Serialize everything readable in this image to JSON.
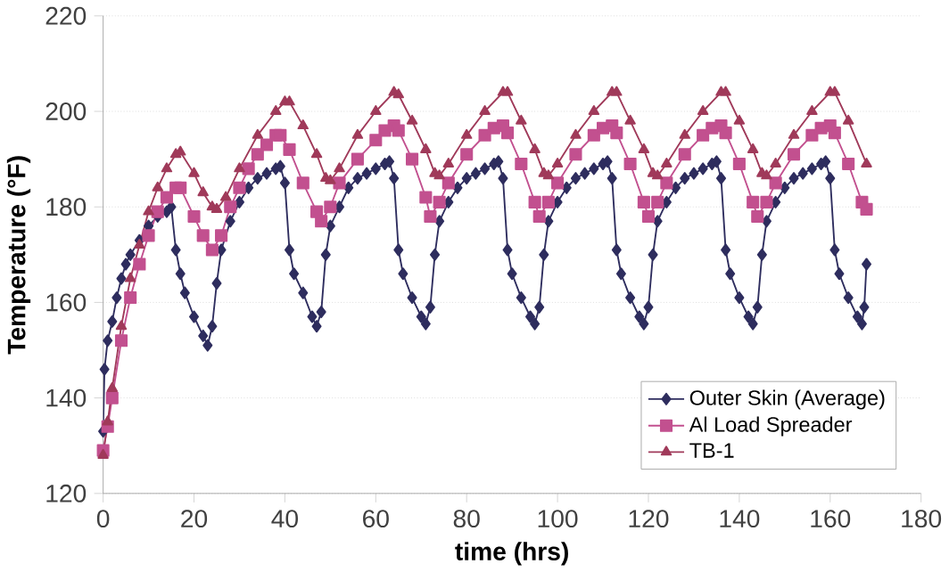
{
  "chart_data": {
    "type": "line",
    "xlabel": "time (hrs)",
    "ylabel": "Temperature (°F)",
    "xlim": [
      0,
      180
    ],
    "ylim": [
      120,
      220
    ],
    "xticks": [
      0,
      20,
      40,
      60,
      80,
      100,
      120,
      140,
      160,
      180
    ],
    "yticks": [
      120,
      140,
      160,
      180,
      200,
      220
    ],
    "grid": "y",
    "legend": "bottom right",
    "series": [
      {
        "name": "Outer Skin (Average)",
        "color": "#2e2d5e",
        "marker": "diamond",
        "x": [
          0,
          0.3,
          1,
          2,
          3,
          4,
          5,
          6,
          8,
          10,
          12,
          14,
          15,
          16,
          17,
          18,
          20,
          22,
          23,
          24,
          25,
          26,
          28,
          30,
          32,
          34,
          36,
          38,
          39,
          40,
          41,
          42,
          44,
          46,
          47,
          48,
          49,
          50,
          52,
          54,
          56,
          58,
          60,
          62,
          63,
          64,
          65,
          66,
          68,
          70,
          71,
          72,
          73,
          74,
          76,
          78,
          80,
          82,
          84,
          86,
          87,
          88,
          89,
          90,
          92,
          94,
          95,
          96,
          97,
          98,
          100,
          102,
          104,
          106,
          108,
          110,
          111,
          112,
          113,
          114,
          116,
          118,
          119,
          120,
          121,
          122,
          124,
          126,
          128,
          130,
          132,
          134,
          135,
          136,
          137,
          138,
          140,
          142,
          143,
          144,
          145,
          146,
          148,
          150,
          152,
          154,
          156,
          158,
          159,
          160,
          161,
          162,
          164,
          166,
          167,
          167.5,
          168
        ],
        "values": [
          133,
          146,
          152,
          156,
          161,
          165,
          168,
          170,
          173,
          176,
          178,
          179,
          180,
          171,
          166,
          162,
          157,
          153,
          151,
          155,
          164,
          171,
          177,
          181,
          184,
          186,
          187,
          188,
          188.5,
          185,
          171,
          166,
          162,
          157,
          155,
          158,
          170,
          176,
          180,
          184,
          186,
          187,
          188,
          189,
          189.5,
          186,
          171,
          166,
          161,
          157,
          155.5,
          159,
          170,
          177,
          181,
          184,
          186,
          187,
          188,
          189,
          189.5,
          186,
          171,
          166,
          161,
          157,
          155.5,
          159,
          170,
          177,
          181,
          184,
          186,
          187,
          188,
          189,
          189.5,
          186,
          171,
          166,
          161,
          157,
          155.5,
          159,
          170,
          177,
          181,
          184,
          186,
          187,
          188,
          189,
          189.5,
          186,
          171,
          166,
          161,
          157,
          155.5,
          159,
          170,
          177,
          181,
          184,
          186,
          187,
          188,
          189,
          189.5,
          186,
          171,
          166,
          161,
          157,
          155.5,
          159,
          168
        ]
      },
      {
        "name": "Al Load Spreader",
        "color": "#c2508f",
        "marker": "square",
        "x": [
          0,
          1,
          2,
          4,
          6,
          8,
          10,
          12,
          14,
          16,
          17,
          20,
          22,
          24,
          26,
          28,
          30,
          32,
          34,
          36,
          38,
          39,
          41,
          44,
          47,
          48,
          50,
          52,
          56,
          60,
          62,
          64,
          65,
          68,
          71,
          72,
          74,
          76,
          80,
          84,
          86,
          88,
          89,
          92,
          95,
          96,
          98,
          100,
          104,
          108,
          110,
          112,
          113,
          116,
          119,
          120,
          122,
          124,
          128,
          132,
          134,
          136,
          137,
          140,
          143,
          144,
          146,
          148,
          152,
          156,
          158,
          160,
          161,
          164,
          167,
          168
        ],
        "values": [
          129,
          134,
          140,
          152,
          161,
          168,
          174,
          179,
          182,
          184,
          184,
          178,
          174,
          171,
          174,
          180,
          184,
          188,
          191,
          193,
          195,
          195,
          192,
          185,
          179,
          177,
          180,
          185,
          190,
          194,
          196,
          197,
          196,
          190,
          182,
          178,
          181,
          185,
          191,
          195,
          196.5,
          197,
          195.5,
          189,
          181,
          178,
          181,
          185,
          191,
          195,
          196.5,
          197,
          195.5,
          189,
          181,
          178,
          181,
          185,
          191,
          195,
          196.5,
          197,
          195.5,
          189,
          181,
          178,
          181,
          185,
          191,
          195,
          196.5,
          197,
          195.5,
          189,
          181,
          179.5
        ]
      },
      {
        "name": "TB-1",
        "color": "#a03a5a",
        "marker": "triangle",
        "x": [
          0,
          1,
          2,
          4,
          6,
          8,
          10,
          12,
          14,
          16,
          17,
          20,
          22,
          24,
          25,
          27,
          30,
          34,
          38,
          40,
          41,
          44,
          47,
          49,
          50,
          52,
          56,
          60,
          64,
          65,
          68,
          71,
          73,
          74,
          76,
          80,
          84,
          88,
          89,
          92,
          95,
          97,
          98,
          100,
          104,
          108,
          112,
          113,
          116,
          119,
          121,
          122,
          124,
          128,
          132,
          136,
          137,
          140,
          143,
          145,
          146,
          148,
          152,
          156,
          160,
          161,
          164,
          168
        ],
        "values": [
          128,
          135,
          142,
          155,
          165,
          172,
          179,
          184,
          188,
          191,
          191.5,
          187,
          183,
          180,
          179.5,
          182,
          188,
          195,
          200,
          202,
          202,
          197,
          191,
          186,
          185.5,
          188,
          195,
          200,
          204,
          203.5,
          198,
          192,
          187,
          186.5,
          189,
          195,
          200,
          204,
          204,
          198,
          192,
          187,
          186.5,
          189,
          195,
          200,
          204,
          204,
          198,
          192,
          187,
          186.5,
          189,
          195,
          200,
          204,
          204,
          198,
          192,
          187,
          186.5,
          189,
          195,
          200,
          204,
          204,
          198,
          189
        ]
      }
    ]
  }
}
